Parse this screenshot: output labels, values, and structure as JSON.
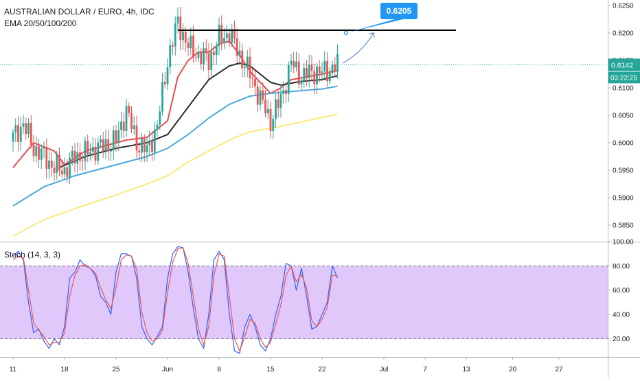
{
  "header": {
    "symbol_title": "AUSTRALIAN DOLLAR / EURO, 4h, IDC",
    "indicator_label": "EMA 20/50/100/200"
  },
  "stoch": {
    "label": "Stoch (14, 3, 3)"
  },
  "price_badge": {
    "price": "0.6142",
    "countdown": "03:22:25"
  },
  "target_label": "0.6205",
  "colors": {
    "ema20": "#e84a4f",
    "ema50": "#2b2b2b",
    "ema100": "#4aa8d8",
    "ema200": "#fbe97a",
    "bull": "#26a69a",
    "bear": "#ef5350",
    "stoch_k": "#2962ff",
    "stoch_d": "#ef5350",
    "stoch_band": "#e1c8fb",
    "callout": "#2196f3"
  },
  "chart_data": [
    {
      "type": "candlestick",
      "title": "AUSTRALIAN DOLLAR / EURO, 4h, IDC",
      "ylim": [
        0.582,
        0.626
      ],
      "y_ticks": [
        "0.6250",
        "0.6200",
        "0.6150",
        "0.6100",
        "0.6050",
        "0.6000",
        "0.5950",
        "0.5900",
        "0.5850"
      ],
      "x_range": [
        0,
        115
      ],
      "x_ticks": [
        {
          "label": "11",
          "x": 0
        },
        {
          "label": "18",
          "x": 10
        },
        {
          "label": "25",
          "x": 20
        },
        {
          "label": "Jun",
          "x": 30
        },
        {
          "label": "8",
          "x": 40
        },
        {
          "label": "15",
          "x": 50
        },
        {
          "label": "22",
          "x": 60
        },
        {
          "label": "Jul",
          "x": 72
        },
        {
          "label": "7",
          "x": 80
        },
        {
          "label": "13",
          "x": 88
        },
        {
          "label": "20",
          "x": 97
        },
        {
          "label": "27",
          "x": 106
        }
      ],
      "close_anchors": [
        [
          0,
          0.601
        ],
        [
          2,
          0.6035
        ],
        [
          4,
          0.599
        ],
        [
          6,
          0.5975
        ],
        [
          8,
          0.5955
        ],
        [
          10,
          0.595
        ],
        [
          12,
          0.5975
        ],
        [
          14,
          0.598
        ],
        [
          16,
          0.599
        ],
        [
          18,
          0.5995
        ],
        [
          20,
          0.6005
        ],
        [
          22,
          0.606
        ],
        [
          24,
          0.6
        ],
        [
          26,
          0.5985
        ],
        [
          28,
          0.603
        ],
        [
          30,
          0.615
        ],
        [
          32,
          0.622
        ],
        [
          34,
          0.6175
        ],
        [
          36,
          0.616
        ],
        [
          38,
          0.615
        ],
        [
          40,
          0.619
        ],
        [
          42,
          0.62
        ],
        [
          44,
          0.616
        ],
        [
          46,
          0.6125
        ],
        [
          48,
          0.608
        ],
        [
          50,
          0.604
        ],
        [
          52,
          0.608
        ],
        [
          54,
          0.6145
        ],
        [
          56,
          0.612
        ],
        [
          58,
          0.613
        ],
        [
          60,
          0.6128
        ],
        [
          62,
          0.6135
        ],
        [
          63,
          0.6142
        ]
      ],
      "series": [
        {
          "name": "EMA 20",
          "anchors": [
            [
              0,
              0.5955
            ],
            [
              4,
              0.6
            ],
            [
              8,
              0.5985
            ],
            [
              10,
              0.596
            ],
            [
              14,
              0.5985
            ],
            [
              18,
              0.5995
            ],
            [
              22,
              0.6005
            ],
            [
              26,
              0.601
            ],
            [
              30,
              0.604
            ],
            [
              32,
              0.612
            ],
            [
              34,
              0.615
            ],
            [
              36,
              0.6165
            ],
            [
              38,
              0.6165
            ],
            [
              40,
              0.618
            ],
            [
              42,
              0.6185
            ],
            [
              44,
              0.616
            ],
            [
              46,
              0.613
            ],
            [
              48,
              0.611
            ],
            [
              50,
              0.609
            ],
            [
              52,
              0.61
            ],
            [
              54,
              0.6115
            ],
            [
              56,
              0.6118
            ],
            [
              58,
              0.6122
            ],
            [
              60,
              0.6125
            ],
            [
              62,
              0.613
            ],
            [
              63,
              0.6132
            ]
          ]
        },
        {
          "name": "EMA 50",
          "anchors": [
            [
              9,
              0.5955
            ],
            [
              14,
              0.5975
            ],
            [
              20,
              0.599
            ],
            [
              26,
              0.6
            ],
            [
              30,
              0.6015
            ],
            [
              34,
              0.6065
            ],
            [
              38,
              0.6115
            ],
            [
              42,
              0.614
            ],
            [
              44,
              0.6145
            ],
            [
              46,
              0.614
            ],
            [
              48,
              0.6125
            ],
            [
              50,
              0.611
            ],
            [
              52,
              0.6105
            ],
            [
              56,
              0.6112
            ],
            [
              60,
              0.6115
            ],
            [
              63,
              0.6122
            ]
          ]
        },
        {
          "name": "EMA 100",
          "anchors": [
            [
              0,
              0.5885
            ],
            [
              6,
              0.592
            ],
            [
              12,
              0.594
            ],
            [
              20,
              0.596
            ],
            [
              26,
              0.5975
            ],
            [
              30,
              0.599
            ],
            [
              34,
              0.6015
            ],
            [
              38,
              0.6045
            ],
            [
              42,
              0.607
            ],
            [
              46,
              0.6085
            ],
            [
              50,
              0.609
            ],
            [
              56,
              0.6095
            ],
            [
              60,
              0.6098
            ],
            [
              63,
              0.6103
            ]
          ]
        },
        {
          "name": "EMA 200",
          "anchors": [
            [
              0,
              0.583
            ],
            [
              6,
              0.586
            ],
            [
              12,
              0.588
            ],
            [
              20,
              0.5905
            ],
            [
              26,
              0.5925
            ],
            [
              30,
              0.594
            ],
            [
              34,
              0.5965
            ],
            [
              38,
              0.5985
            ],
            [
              42,
              0.6005
            ],
            [
              46,
              0.602
            ],
            [
              52,
              0.603
            ],
            [
              58,
              0.6042
            ],
            [
              63,
              0.6052
            ]
          ]
        }
      ],
      "resistance_line": {
        "price": 0.6205,
        "x_start": 32,
        "x_end": 86
      },
      "projection_arrow": {
        "from": [
          64,
          0.6145
        ],
        "to": [
          70,
          0.62
        ]
      },
      "current_price": 0.6142
    },
    {
      "type": "line",
      "title": "Stoch (14, 3, 3)",
      "ylim": [
        5,
        100
      ],
      "y_ticks": [
        "100.00",
        "80.00",
        "60.00",
        "40.00",
        "20.00"
      ],
      "band": [
        20,
        80
      ],
      "series": [
        {
          "name": "%K",
          "anchors": [
            [
              0,
              88
            ],
            [
              1,
              92
            ],
            [
              2,
              85
            ],
            [
              3,
              50
            ],
            [
              4,
              25
            ],
            [
              5,
              28
            ],
            [
              6,
              18
            ],
            [
              7,
              12
            ],
            [
              8,
              20
            ],
            [
              9,
              15
            ],
            [
              10,
              30
            ],
            [
              11,
              70
            ],
            [
              12,
              75
            ],
            [
              13,
              85
            ],
            [
              14,
              80
            ],
            [
              15,
              78
            ],
            [
              16,
              72
            ],
            [
              17,
              55
            ],
            [
              18,
              50
            ],
            [
              19,
              40
            ],
            [
              20,
              75
            ],
            [
              21,
              90
            ],
            [
              22,
              90
            ],
            [
              23,
              88
            ],
            [
              24,
              70
            ],
            [
              25,
              30
            ],
            [
              26,
              20
            ],
            [
              27,
              15
            ],
            [
              28,
              22
            ],
            [
              29,
              30
            ],
            [
              30,
              70
            ],
            [
              31,
              90
            ],
            [
              32,
              96
            ],
            [
              33,
              95
            ],
            [
              34,
              75
            ],
            [
              35,
              45
            ],
            [
              36,
              20
            ],
            [
              37,
              12
            ],
            [
              38,
              40
            ],
            [
              39,
              85
            ],
            [
              40,
              92
            ],
            [
              41,
              85
            ],
            [
              42,
              40
            ],
            [
              43,
              10
            ],
            [
              44,
              8
            ],
            [
              45,
              30
            ],
            [
              46,
              40
            ],
            [
              47,
              30
            ],
            [
              48,
              15
            ],
            [
              49,
              10
            ],
            [
              50,
              20
            ],
            [
              51,
              40
            ],
            [
              52,
              55
            ],
            [
              53,
              82
            ],
            [
              54,
              80
            ],
            [
              55,
              60
            ],
            [
              56,
              78
            ],
            [
              57,
              55
            ],
            [
              58,
              28
            ],
            [
              59,
              30
            ],
            [
              60,
              40
            ],
            [
              61,
              50
            ],
            [
              62,
              80
            ],
            [
              63,
              70
            ]
          ]
        },
        {
          "name": "%D",
          "anchors": [
            [
              0,
              85
            ],
            [
              1,
              88
            ],
            [
              2,
              87
            ],
            [
              3,
              60
            ],
            [
              4,
              33
            ],
            [
              5,
              27
            ],
            [
              6,
              22
            ],
            [
              7,
              15
            ],
            [
              8,
              17
            ],
            [
              9,
              17
            ],
            [
              10,
              25
            ],
            [
              11,
              55
            ],
            [
              12,
              72
            ],
            [
              13,
              80
            ],
            [
              14,
              81
            ],
            [
              15,
              78
            ],
            [
              16,
              74
            ],
            [
              17,
              62
            ],
            [
              18,
              52
            ],
            [
              19,
              45
            ],
            [
              20,
              62
            ],
            [
              21,
              85
            ],
            [
              22,
              89
            ],
            [
              23,
              88
            ],
            [
              24,
              77
            ],
            [
              25,
              42
            ],
            [
              26,
              25
            ],
            [
              27,
              18
            ],
            [
              28,
              20
            ],
            [
              29,
              27
            ],
            [
              30,
              58
            ],
            [
              31,
              83
            ],
            [
              32,
              94
            ],
            [
              33,
              95
            ],
            [
              34,
              82
            ],
            [
              35,
              55
            ],
            [
              36,
              28
            ],
            [
              37,
              15
            ],
            [
              38,
              30
            ],
            [
              39,
              72
            ],
            [
              40,
              90
            ],
            [
              41,
              88
            ],
            [
              42,
              55
            ],
            [
              43,
              20
            ],
            [
              44,
              10
            ],
            [
              45,
              22
            ],
            [
              46,
              36
            ],
            [
              47,
              33
            ],
            [
              48,
              20
            ],
            [
              49,
              13
            ],
            [
              50,
              17
            ],
            [
              51,
              32
            ],
            [
              52,
              48
            ],
            [
              53,
              72
            ],
            [
              54,
              80
            ],
            [
              55,
              67
            ],
            [
              56,
              73
            ],
            [
              57,
              62
            ],
            [
              58,
              35
            ],
            [
              59,
              30
            ],
            [
              60,
              36
            ],
            [
              61,
              46
            ],
            [
              62,
              72
            ],
            [
              63,
              72
            ]
          ]
        }
      ]
    }
  ]
}
